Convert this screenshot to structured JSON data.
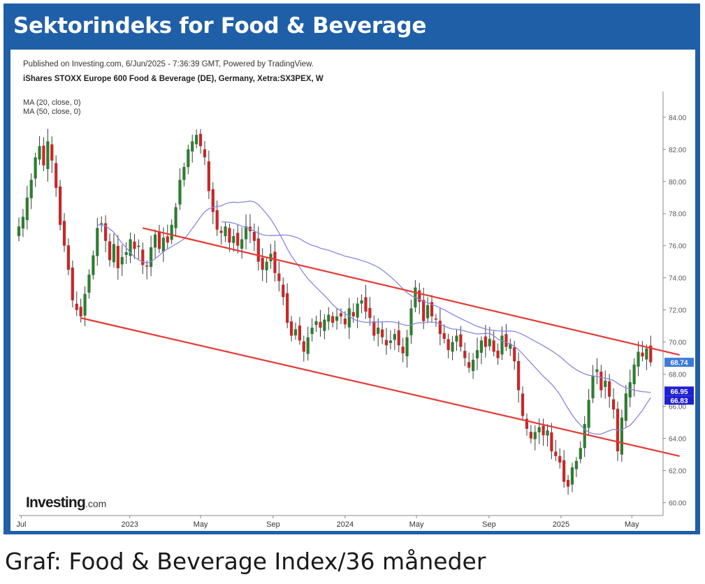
{
  "banner": {
    "title": "Sektorindeks for Food & Beverage"
  },
  "caption": "Graf: Food & Beverage Index/36 måneder",
  "colors": {
    "banner": "#1f5fa8",
    "candle_up": "#2e7d32",
    "candle_down": "#c62828",
    "channel": "#e53935",
    "ma": "#8a86e0",
    "price_tag": "#3d7bd9",
    "ma_tag": "#2020d0"
  },
  "chart_data": {
    "type": "candlestick",
    "published": "Published on Investing.com, 6/Jun/2025 - 7:36:39 GMT, Powered by TradingView.",
    "instrument": "iShares STOXX Europe 600 Food & Beverage (DE), Germany, Xetra:SX3PEX, W",
    "indicators": [
      "MA (20, close, 0)",
      "MA (50, close, 0)"
    ],
    "watermark": "Investing.com",
    "x_range": [
      "2022-06-27",
      "2025-06-23"
    ],
    "ylim": [
      59.2,
      85.6
    ],
    "y_ticks": [
      "84.00",
      "82.00",
      "80.00",
      "78.00",
      "76.00",
      "74.00",
      "72.00",
      "70.00",
      "68.00",
      "66.00",
      "64.00",
      "62.00",
      "60.00"
    ],
    "x_ticks": [
      {
        "label": "Jul",
        "date": "2022-07-01"
      },
      {
        "label": "2023",
        "date": "2023-01-01"
      },
      {
        "label": "May",
        "date": "2023-05-01"
      },
      {
        "label": "Sep",
        "date": "2023-09-01"
      },
      {
        "label": "2024",
        "date": "2024-01-01"
      },
      {
        "label": "May",
        "date": "2024-05-01"
      },
      {
        "label": "Sep",
        "date": "2024-09-01"
      },
      {
        "label": "2025",
        "date": "2025-01-01"
      },
      {
        "label": "May",
        "date": "2025-05-01"
      }
    ],
    "price_tags": [
      {
        "label": "68.74",
        "value": 68.74,
        "kind": "price"
      },
      {
        "label": "66.95",
        "value": 66.95,
        "kind": "ma"
      },
      {
        "label": "66.83",
        "value": 66.83,
        "kind": "ma"
      }
    ],
    "closes": [
      [
        "2022-06-27",
        77.2
      ],
      [
        "2022-07-04",
        77.8
      ],
      [
        "2022-07-11",
        79.0
      ],
      [
        "2022-07-18",
        80.1
      ],
      [
        "2022-07-25",
        81.5
      ],
      [
        "2022-08-01",
        82.2
      ],
      [
        "2022-08-08",
        81.0
      ],
      [
        "2022-08-15",
        82.5
      ],
      [
        "2022-08-22",
        81.3
      ],
      [
        "2022-08-29",
        79.6
      ],
      [
        "2022-09-05",
        77.3
      ],
      [
        "2022-09-12",
        76.0
      ],
      [
        "2022-09-19",
        74.5
      ],
      [
        "2022-09-26",
        72.6
      ],
      [
        "2022-10-03",
        72.0
      ],
      [
        "2022-10-10",
        71.6
      ],
      [
        "2022-10-17",
        73.0
      ],
      [
        "2022-10-24",
        74.2
      ],
      [
        "2022-10-31",
        75.4
      ],
      [
        "2022-11-07",
        77.1
      ],
      [
        "2022-11-14",
        77.4
      ],
      [
        "2022-11-21",
        76.3
      ],
      [
        "2022-11-28",
        75.1
      ],
      [
        "2022-12-05",
        76.1
      ],
      [
        "2022-12-12",
        74.6
      ],
      [
        "2022-12-19",
        75.3
      ],
      [
        "2022-12-26",
        75.6
      ],
      [
        "2023-01-02",
        76.4
      ],
      [
        "2023-01-09",
        75.8
      ],
      [
        "2023-01-16",
        76.0
      ],
      [
        "2023-01-23",
        74.8
      ],
      [
        "2023-01-30",
        74.7
      ],
      [
        "2023-02-06",
        75.9
      ],
      [
        "2023-02-13",
        76.7
      ],
      [
        "2023-02-20",
        75.8
      ],
      [
        "2023-02-27",
        76.5
      ],
      [
        "2023-03-06",
        76.2
      ],
      [
        "2023-03-13",
        77.3
      ],
      [
        "2023-03-20",
        78.4
      ],
      [
        "2023-03-27",
        80.1
      ],
      [
        "2023-04-03",
        80.9
      ],
      [
        "2023-04-10",
        82.0
      ],
      [
        "2023-04-17",
        82.5
      ],
      [
        "2023-04-24",
        82.9
      ],
      [
        "2023-05-01",
        82.2
      ],
      [
        "2023-05-08",
        81.5
      ],
      [
        "2023-05-15",
        79.4
      ],
      [
        "2023-05-22",
        78.1
      ],
      [
        "2023-05-29",
        77.0
      ],
      [
        "2023-06-05",
        76.8
      ],
      [
        "2023-06-12",
        77.2
      ],
      [
        "2023-06-19",
        76.2
      ],
      [
        "2023-06-26",
        76.6
      ],
      [
        "2023-07-03",
        76.0
      ],
      [
        "2023-07-10",
        76.4
      ],
      [
        "2023-07-17",
        77.2
      ],
      [
        "2023-07-24",
        76.9
      ],
      [
        "2023-07-31",
        76.3
      ],
      [
        "2023-08-07",
        75.0
      ],
      [
        "2023-08-14",
        74.5
      ],
      [
        "2023-08-21",
        75.0
      ],
      [
        "2023-08-28",
        75.5
      ],
      [
        "2023-09-04",
        74.3
      ],
      [
        "2023-09-11",
        73.8
      ],
      [
        "2023-09-18",
        72.8
      ],
      [
        "2023-09-25",
        71.2
      ],
      [
        "2023-10-02",
        70.4
      ],
      [
        "2023-10-09",
        70.8
      ],
      [
        "2023-10-16",
        70.1
      ],
      [
        "2023-10-23",
        69.4
      ],
      [
        "2023-10-30",
        70.3
      ],
      [
        "2023-11-06",
        70.9
      ],
      [
        "2023-11-13",
        71.3
      ],
      [
        "2023-11-20",
        70.9
      ],
      [
        "2023-11-27",
        71.4
      ],
      [
        "2023-12-04",
        71.7
      ],
      [
        "2023-12-11",
        71.2
      ],
      [
        "2023-12-18",
        71.6
      ],
      [
        "2023-12-25",
        71.6
      ],
      [
        "2024-01-01",
        71.1
      ],
      [
        "2024-01-08",
        72.1
      ],
      [
        "2024-01-15",
        71.6
      ],
      [
        "2024-01-22",
        72.4
      ],
      [
        "2024-01-29",
        72.6
      ],
      [
        "2024-02-05",
        71.9
      ],
      [
        "2024-02-12",
        71.5
      ],
      [
        "2024-02-19",
        70.4
      ],
      [
        "2024-02-26",
        70.9
      ],
      [
        "2024-03-04",
        70.3
      ],
      [
        "2024-03-11",
        69.8
      ],
      [
        "2024-03-18",
        70.1
      ],
      [
        "2024-03-25",
        70.5
      ],
      [
        "2024-04-01",
        69.8
      ],
      [
        "2024-04-08",
        69.3
      ],
      [
        "2024-04-15",
        70.3
      ],
      [
        "2024-04-22",
        72.1
      ],
      [
        "2024-04-29",
        73.4
      ],
      [
        "2024-05-06",
        72.5
      ],
      [
        "2024-05-13",
        71.3
      ],
      [
        "2024-05-20",
        72.3
      ],
      [
        "2024-05-27",
        71.6
      ],
      [
        "2024-06-03",
        71.4
      ],
      [
        "2024-06-10",
        70.5
      ],
      [
        "2024-06-17",
        70.2
      ],
      [
        "2024-06-24",
        69.5
      ],
      [
        "2024-07-01",
        70.0
      ],
      [
        "2024-07-08",
        70.4
      ],
      [
        "2024-07-15",
        69.7
      ],
      [
        "2024-07-22",
        69.0
      ],
      [
        "2024-07-29",
        68.4
      ],
      [
        "2024-08-05",
        68.9
      ],
      [
        "2024-08-12",
        69.5
      ],
      [
        "2024-08-19",
        70.1
      ],
      [
        "2024-08-26",
        69.7
      ],
      [
        "2024-09-02",
        70.2
      ],
      [
        "2024-09-09",
        69.4
      ],
      [
        "2024-09-16",
        69.0
      ],
      [
        "2024-09-23",
        70.4
      ],
      [
        "2024-09-30",
        69.7
      ],
      [
        "2024-10-07",
        69.9
      ],
      [
        "2024-10-14",
        68.8
      ],
      [
        "2024-10-21",
        67.0
      ],
      [
        "2024-10-28",
        65.4
      ],
      [
        "2024-11-04",
        64.6
      ],
      [
        "2024-11-11",
        64.0
      ],
      [
        "2024-11-18",
        64.4
      ],
      [
        "2024-11-25",
        64.7
      ],
      [
        "2024-12-02",
        64.2
      ],
      [
        "2024-12-09",
        64.5
      ],
      [
        "2024-12-16",
        63.2
      ],
      [
        "2024-12-23",
        62.9
      ],
      [
        "2024-12-30",
        62.5
      ],
      [
        "2025-01-06",
        61.3
      ],
      [
        "2025-01-13",
        61.0
      ],
      [
        "2025-01-20",
        62.2
      ],
      [
        "2025-01-27",
        62.6
      ],
      [
        "2025-02-03",
        63.4
      ],
      [
        "2025-02-10",
        64.9
      ],
      [
        "2025-02-17",
        66.4
      ],
      [
        "2025-02-24",
        67.9
      ],
      [
        "2025-03-03",
        68.3
      ],
      [
        "2025-03-10",
        67.0
      ],
      [
        "2025-03-17",
        67.6
      ],
      [
        "2025-03-24",
        66.6
      ],
      [
        "2025-03-31",
        65.8
      ],
      [
        "2025-04-07",
        63.2
      ],
      [
        "2025-04-14",
        65.3
      ],
      [
        "2025-04-21",
        66.8
      ],
      [
        "2025-04-28",
        67.5
      ],
      [
        "2025-05-05",
        68.6
      ],
      [
        "2025-05-12",
        69.4
      ],
      [
        "2025-05-19",
        69.1
      ],
      [
        "2025-05-26",
        69.6
      ],
      [
        "2025-06-02",
        68.74
      ]
    ],
    "channel_lines": [
      {
        "from": [
          "2023-01-23",
          77.1
        ],
        "to": [
          "2025-07-21",
          69.2
        ]
      },
      {
        "from": [
          "2022-10-10",
          71.5
        ],
        "to": [
          "2025-07-21",
          62.9
        ]
      }
    ]
  }
}
